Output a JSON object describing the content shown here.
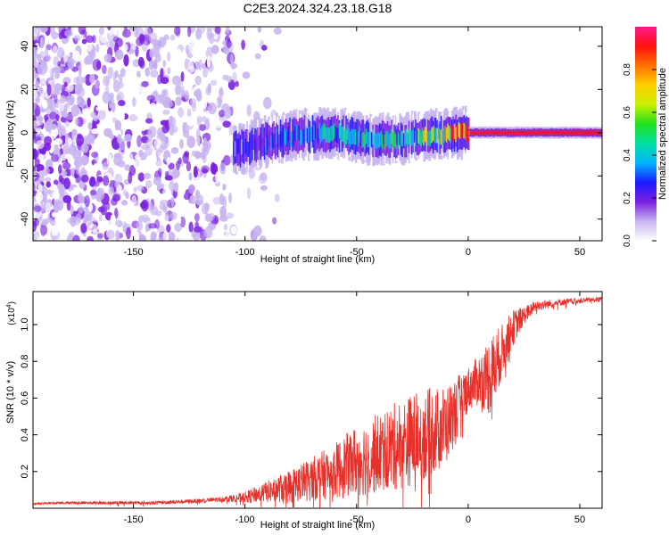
{
  "title": "C2E3.2024.324.23.18.G18",
  "chart_data": [
    {
      "type": "heatmap",
      "title": "C2E3.2024.324.23.18.G18",
      "xlabel": "Height of straight line (km)",
      "ylabel": "Frequency (Hz)",
      "xlim": [
        -195,
        60
      ],
      "ylim": [
        -50,
        49
      ],
      "x_ticks": [
        -150,
        -100,
        -50,
        0,
        50
      ],
      "y_ticks": [
        -40,
        -20,
        0,
        20,
        40
      ],
      "colorbar": {
        "label": "Normalized spectral amplitude",
        "range": [
          0,
          1
        ],
        "ticks": [
          "0.0",
          "0.2",
          "0.4",
          "0.6",
          "0.8"
        ],
        "colors": [
          "#ffffff",
          "#c8b4f0",
          "#7a1fe0",
          "#1a1aff",
          "#00b4ff",
          "#00e0a0",
          "#20e020",
          "#c8f000",
          "#ffd000",
          "#ff7000",
          "#ff1010",
          "#ff1a8c"
        ]
      },
      "signal_track": {
        "description_values": [
          {
            "x": -105,
            "freq": -8,
            "amp": 0.25
          },
          {
            "x": -90,
            "freq": -4,
            "amp": 0.3
          },
          {
            "x": -75,
            "freq": -1,
            "amp": 0.35
          },
          {
            "x": -60,
            "freq": 0,
            "amp": 0.45
          },
          {
            "x": -45,
            "freq": -3,
            "amp": 0.45
          },
          {
            "x": -30,
            "freq": -3,
            "amp": 0.5
          },
          {
            "x": -15,
            "freq": -1,
            "amp": 0.6
          },
          {
            "x": -5,
            "freq": 0,
            "amp": 0.85
          },
          {
            "x": 5,
            "freq": 0,
            "amp": 0.95
          },
          {
            "x": 20,
            "freq": 0,
            "amp": 0.95
          },
          {
            "x": 40,
            "freq": 0,
            "amp": 0.95
          },
          {
            "x": 60,
            "freq": 0,
            "amp": 0.95
          }
        ]
      }
    },
    {
      "type": "line",
      "xlabel": "Height of straight line (km)",
      "ylabel": "SNR (10 * v/v)",
      "y_multiplier": "(x10",
      "y_multiplier_exp": "4",
      "y_multiplier_close": ")",
      "xlim": [
        -195,
        60
      ],
      "ylim": [
        0,
        1.18
      ],
      "x_ticks": [
        -150,
        -100,
        -50,
        0,
        50
      ],
      "y_ticks": [
        0.2,
        0.4,
        0.6,
        0.8,
        1.0
      ],
      "y_tick_labels": [
        "0.2",
        "0.4",
        "0.6",
        "0.8",
        "1.0"
      ],
      "color": "#e8302a",
      "series": [
        {
          "x": [
            -195,
            -180,
            -160,
            -140,
            -120,
            -110,
            -100,
            -90,
            -80,
            -70,
            -60,
            -50,
            -40,
            -30,
            -20,
            -10,
            0,
            5,
            10,
            15,
            20,
            25,
            30,
            40,
            50,
            60
          ],
          "y": [
            0.025,
            0.03,
            0.03,
            0.03,
            0.04,
            0.05,
            0.06,
            0.09,
            0.12,
            0.16,
            0.2,
            0.26,
            0.3,
            0.35,
            0.4,
            0.45,
            0.65,
            0.7,
            0.72,
            0.85,
            0.98,
            1.05,
            1.1,
            1.12,
            1.13,
            1.14
          ],
          "noise": [
            0.005,
            0.006,
            0.008,
            0.01,
            0.012,
            0.015,
            0.03,
            0.06,
            0.09,
            0.12,
            0.15,
            0.2,
            0.22,
            0.25,
            0.25,
            0.22,
            0.12,
            0.14,
            0.22,
            0.15,
            0.1,
            0.05,
            0.03,
            0.02,
            0.015,
            0.012
          ]
        }
      ]
    }
  ]
}
